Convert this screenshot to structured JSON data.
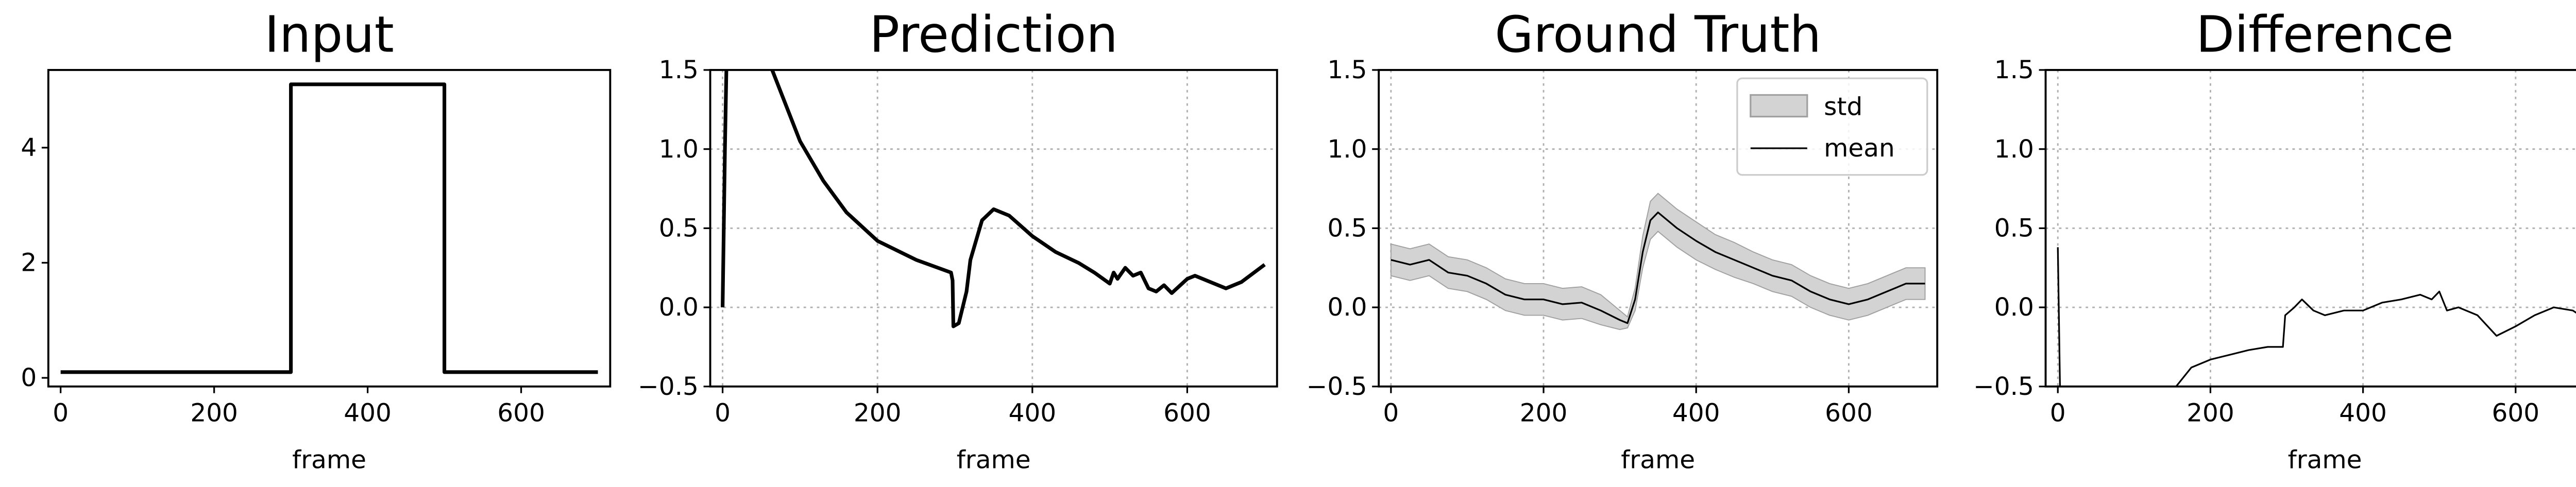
{
  "chart_data": [
    {
      "type": "line",
      "title": "Input",
      "xlabel": "frame",
      "xlim": [
        -16,
        716
      ],
      "ylim": [
        -0.15,
        5.35
      ],
      "xticks": [
        0,
        200,
        400,
        600
      ],
      "yticks": [
        0,
        2,
        4
      ],
      "grid": false,
      "x": [
        0,
        300,
        300,
        500,
        500,
        700
      ],
      "series": [
        {
          "name": null,
          "color": "#000000",
          "width": 2.2,
          "values": [
            0.1,
            0.1,
            5.1,
            5.1,
            0.1,
            0.1
          ]
        }
      ]
    },
    {
      "type": "line",
      "title": "Prediction",
      "xlabel": "frame",
      "xlim": [
        -16,
        716
      ],
      "ylim": [
        -0.5,
        1.5
      ],
      "xticks": [
        0,
        200,
        400,
        600
      ],
      "yticks": [
        {
          "value": -0.5,
          "label": "−0.5"
        },
        {
          "value": 0,
          "label": "0.0"
        },
        0.5,
        {
          "value": 1,
          "label": "1.0"
        },
        1.5
      ],
      "grid": true,
      "x": [
        0,
        3,
        6,
        60,
        80,
        100,
        130,
        160,
        200,
        250,
        295,
        297,
        298,
        305,
        310,
        315,
        320,
        335,
        350,
        370,
        400,
        430,
        460,
        480,
        500,
        505,
        510,
        520,
        530,
        540,
        550,
        560,
        570,
        580,
        600,
        610,
        625,
        650,
        670,
        700
      ],
      "series": [
        {
          "name": null,
          "color": "#000000",
          "width": 2.2,
          "values": [
            0,
            1.0,
            1.8,
            1.55,
            1.3,
            1.05,
            0.8,
            0.6,
            0.42,
            0.3,
            0.22,
            0.17,
            -0.12,
            -0.1,
            0.0,
            0.1,
            0.3,
            0.55,
            0.62,
            0.58,
            0.45,
            0.35,
            0.28,
            0.22,
            0.15,
            0.22,
            0.18,
            0.25,
            0.2,
            0.22,
            0.12,
            0.1,
            0.14,
            0.09,
            0.18,
            0.2,
            0.17,
            0.12,
            0.16,
            0.27
          ]
        }
      ]
    },
    {
      "type": "band-line",
      "title": "Ground Truth",
      "xlabel": "frame",
      "xlim": [
        -16,
        716
      ],
      "ylim": [
        -0.5,
        1.5
      ],
      "xticks": [
        0,
        200,
        400,
        600
      ],
      "yticks": [
        {
          "value": -0.5,
          "label": "−0.5"
        },
        {
          "value": 0,
          "label": "0.0"
        },
        0.5,
        {
          "value": 1,
          "label": "1.0"
        },
        1.5
      ],
      "grid": true,
      "legend": "upper right",
      "x": [
        0,
        25,
        50,
        75,
        100,
        125,
        150,
        175,
        200,
        225,
        250,
        275,
        300,
        310,
        320,
        330,
        340,
        350,
        375,
        400,
        425,
        450,
        475,
        500,
        525,
        550,
        575,
        600,
        625,
        650,
        675,
        700
      ],
      "band": {
        "name": "std",
        "color": "#d3d3d3",
        "lower": [
          0.2,
          0.17,
          0.2,
          0.12,
          0.1,
          0.05,
          -0.02,
          -0.05,
          -0.05,
          -0.08,
          -0.07,
          -0.11,
          -0.14,
          -0.13,
          -0.02,
          0.25,
          0.43,
          0.48,
          0.38,
          0.3,
          0.24,
          0.19,
          0.15,
          0.1,
          0.07,
          0.0,
          -0.05,
          -0.08,
          -0.05,
          0.0,
          0.05,
          0.05
        ],
        "upper": [
          0.4,
          0.37,
          0.4,
          0.32,
          0.3,
          0.25,
          0.18,
          0.15,
          0.15,
          0.12,
          0.13,
          0.08,
          -0.02,
          -0.06,
          0.12,
          0.45,
          0.67,
          0.72,
          0.62,
          0.54,
          0.46,
          0.41,
          0.35,
          0.3,
          0.27,
          0.2,
          0.15,
          0.12,
          0.15,
          0.2,
          0.25,
          0.25
        ]
      },
      "series": [
        {
          "name": "mean",
          "color": "#000000",
          "width": 1,
          "values": [
            0.3,
            0.27,
            0.3,
            0.22,
            0.2,
            0.15,
            0.08,
            0.05,
            0.05,
            0.02,
            0.03,
            -0.02,
            -0.08,
            -0.1,
            0.05,
            0.35,
            0.55,
            0.6,
            0.5,
            0.42,
            0.35,
            0.3,
            0.25,
            0.2,
            0.17,
            0.1,
            0.05,
            0.02,
            0.05,
            0.1,
            0.15,
            0.15
          ]
        }
      ]
    },
    {
      "type": "line",
      "title": "Difference",
      "xlabel": "frame",
      "xlim": [
        -16,
        716
      ],
      "ylim": [
        -0.5,
        1.5
      ],
      "xticks": [
        0,
        200,
        400,
        600
      ],
      "yticks": [
        {
          "value": -0.5,
          "label": "−0.5"
        },
        {
          "value": 0,
          "label": "0.0"
        },
        0.5,
        {
          "value": 1,
          "label": "1.0"
        },
        1.5
      ],
      "grid": true,
      "x": [
        0,
        3,
        100,
        155,
        175,
        200,
        225,
        250,
        275,
        295,
        298,
        310,
        320,
        335,
        350,
        375,
        400,
        425,
        450,
        475,
        490,
        500,
        510,
        525,
        550,
        575,
        600,
        625,
        650,
        675,
        700
      ],
      "series": [
        {
          "name": null,
          "color": "#000000",
          "width": 1,
          "values": [
            0.38,
            -0.55,
            null,
            -0.5,
            -0.38,
            -0.33,
            -0.3,
            -0.27,
            -0.25,
            -0.25,
            -0.05,
            0.0,
            0.05,
            -0.02,
            -0.05,
            -0.02,
            -0.02,
            0.03,
            0.05,
            0.08,
            0.05,
            0.1,
            -0.02,
            0.0,
            -0.05,
            -0.18,
            -0.12,
            -0.05,
            0.0,
            -0.02,
            -0.1
          ]
        }
      ]
    }
  ]
}
